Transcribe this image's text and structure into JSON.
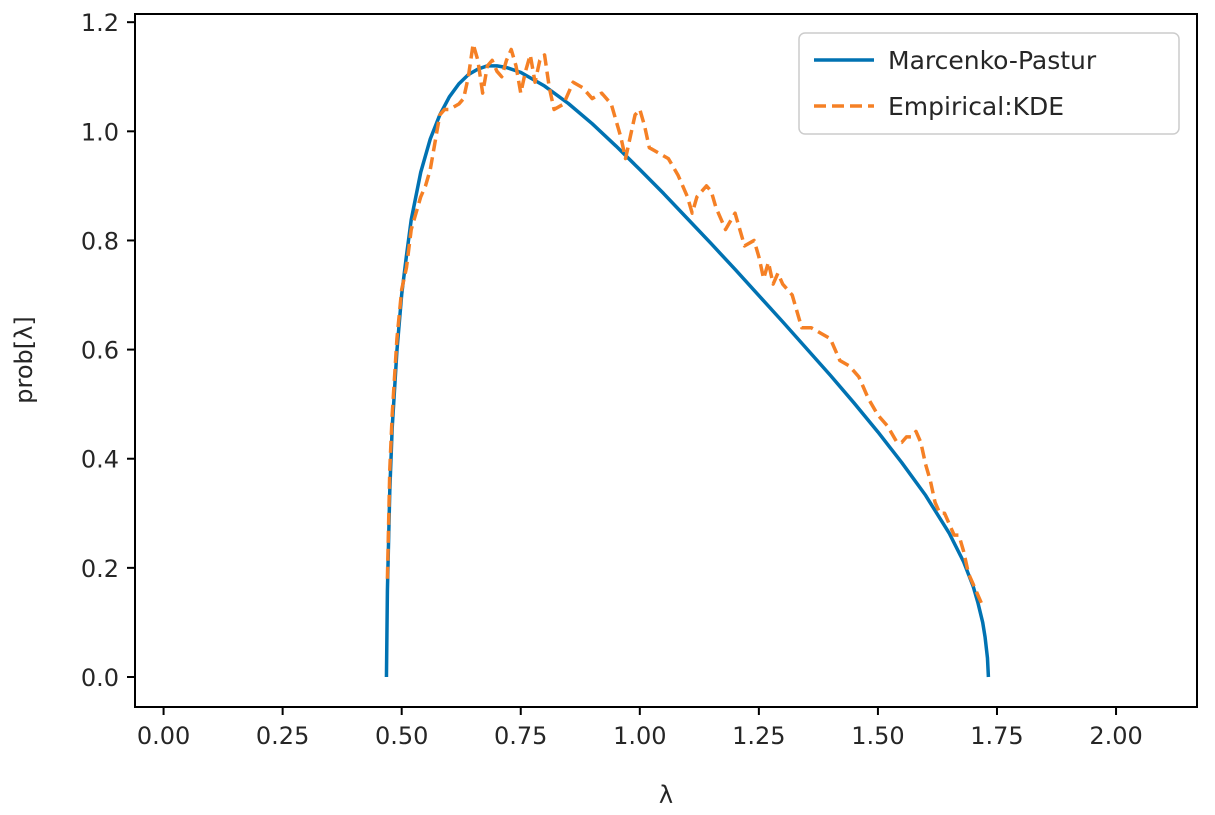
{
  "chart_data": {
    "type": "line",
    "xlabel": "λ",
    "ylabel": "prob[λ]",
    "xlim": [
      -0.06,
      2.17
    ],
    "ylim": [
      -0.055,
      1.215
    ],
    "grid": false,
    "legend_position": "top-right",
    "x_ticks": [
      {
        "value": 0.0,
        "label": "0.00"
      },
      {
        "value": 0.25,
        "label": "0.25"
      },
      {
        "value": 0.5,
        "label": "0.50"
      },
      {
        "value": 0.75,
        "label": "0.75"
      },
      {
        "value": 1.0,
        "label": "1.00"
      },
      {
        "value": 1.25,
        "label": "1.25"
      },
      {
        "value": 1.5,
        "label": "1.50"
      },
      {
        "value": 1.75,
        "label": "1.75"
      },
      {
        "value": 2.0,
        "label": "2.00"
      }
    ],
    "y_ticks": [
      {
        "value": 0.0,
        "label": "0.0"
      },
      {
        "value": 0.2,
        "label": "0.2"
      },
      {
        "value": 0.4,
        "label": "0.4"
      },
      {
        "value": 0.6,
        "label": "0.6"
      },
      {
        "value": 0.8,
        "label": "0.8"
      },
      {
        "value": 1.0,
        "label": "1.0"
      },
      {
        "value": 1.2,
        "label": "1.2"
      }
    ],
    "series": [
      {
        "name": "Marcenko-Pastur",
        "color": "#0072b2",
        "style": "solid",
        "x": [
          0.468,
          0.47,
          0.475,
          0.48,
          0.49,
          0.5,
          0.51,
          0.52,
          0.54,
          0.56,
          0.58,
          0.6,
          0.62,
          0.64,
          0.66,
          0.68,
          0.7,
          0.72,
          0.75,
          0.8,
          0.85,
          0.9,
          0.95,
          1.0,
          1.05,
          1.1,
          1.15,
          1.2,
          1.25,
          1.3,
          1.35,
          1.4,
          1.45,
          1.5,
          1.55,
          1.6,
          1.65,
          1.68,
          1.7,
          1.71,
          1.72,
          1.725,
          1.73,
          1.732
        ],
        "y": [
          0.0,
          0.158,
          0.341,
          0.456,
          0.598,
          0.701,
          0.772,
          0.838,
          0.925,
          0.986,
          1.03,
          1.063,
          1.087,
          1.104,
          1.114,
          1.12,
          1.12,
          1.117,
          1.108,
          1.083,
          1.051,
          1.014,
          0.973,
          0.93,
          0.886,
          0.84,
          0.794,
          0.747,
          0.699,
          0.651,
          0.602,
          0.553,
          0.502,
          0.449,
          0.393,
          0.333,
          0.263,
          0.211,
          0.166,
          0.136,
          0.1,
          0.073,
          0.035,
          0.0
        ]
      },
      {
        "name": "Empirical:KDE",
        "color": "#f58025",
        "style": "dashed",
        "x": [
          0.47,
          0.475,
          0.48,
          0.49,
          0.5,
          0.51,
          0.52,
          0.54,
          0.55,
          0.56,
          0.57,
          0.58,
          0.59,
          0.6,
          0.62,
          0.63,
          0.64,
          0.65,
          0.66,
          0.67,
          0.68,
          0.69,
          0.7,
          0.71,
          0.72,
          0.73,
          0.74,
          0.75,
          0.76,
          0.77,
          0.78,
          0.79,
          0.8,
          0.81,
          0.82,
          0.84,
          0.86,
          0.88,
          0.9,
          0.92,
          0.94,
          0.96,
          0.97,
          0.98,
          0.99,
          1.0,
          1.01,
          1.02,
          1.04,
          1.06,
          1.08,
          1.1,
          1.11,
          1.12,
          1.14,
          1.15,
          1.16,
          1.18,
          1.2,
          1.22,
          1.24,
          1.25,
          1.26,
          1.27,
          1.28,
          1.29,
          1.3,
          1.32,
          1.34,
          1.36,
          1.38,
          1.4,
          1.42,
          1.44,
          1.46,
          1.48,
          1.5,
          1.52,
          1.54,
          1.55,
          1.56,
          1.57,
          1.58,
          1.59,
          1.6,
          1.61,
          1.62,
          1.63,
          1.64,
          1.65,
          1.66,
          1.67,
          1.68,
          1.69,
          1.7,
          1.71,
          1.72
        ],
        "y": [
          0.18,
          0.38,
          0.48,
          0.62,
          0.71,
          0.75,
          0.82,
          0.88,
          0.9,
          0.93,
          0.98,
          1.03,
          1.04,
          1.04,
          1.05,
          1.06,
          1.1,
          1.16,
          1.13,
          1.07,
          1.12,
          1.13,
          1.11,
          1.1,
          1.13,
          1.15,
          1.12,
          1.07,
          1.11,
          1.14,
          1.09,
          1.13,
          1.14,
          1.08,
          1.04,
          1.05,
          1.09,
          1.08,
          1.06,
          1.07,
          1.05,
          0.99,
          0.95,
          0.99,
          1.03,
          1.04,
          1.01,
          0.97,
          0.96,
          0.95,
          0.92,
          0.88,
          0.85,
          0.88,
          0.9,
          0.89,
          0.86,
          0.82,
          0.85,
          0.79,
          0.8,
          0.77,
          0.73,
          0.76,
          0.72,
          0.74,
          0.72,
          0.7,
          0.64,
          0.64,
          0.63,
          0.62,
          0.58,
          0.57,
          0.55,
          0.51,
          0.48,
          0.46,
          0.43,
          0.43,
          0.44,
          0.44,
          0.45,
          0.43,
          0.39,
          0.36,
          0.32,
          0.3,
          0.3,
          0.28,
          0.26,
          0.26,
          0.23,
          0.19,
          0.17,
          0.15,
          0.13
        ]
      }
    ]
  }
}
